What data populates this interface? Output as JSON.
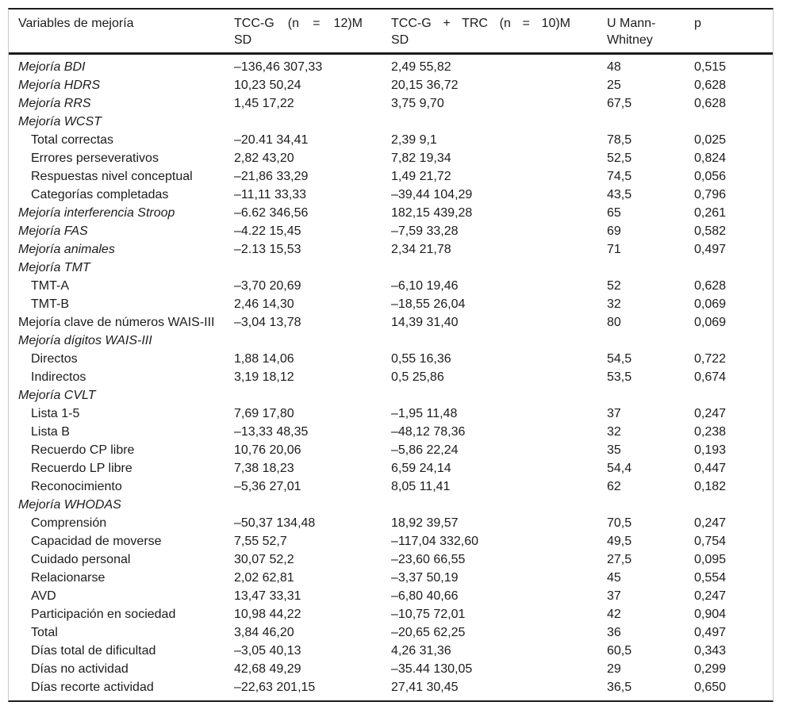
{
  "table": {
    "columns": [
      {
        "name": "variables",
        "line1": "Variables de mejoría",
        "line2": ""
      },
      {
        "name": "tccg",
        "line1": "TCC-G (n = 12)M",
        "line2": "SD"
      },
      {
        "name": "tccg_trc",
        "line1": "TCC-G + TRC (n = 10)M",
        "line2": "SD"
      },
      {
        "name": "u_mann_whitney",
        "line1": "U Mann-",
        "line2": "Whitney"
      },
      {
        "name": "p",
        "line1": "p",
        "line2": ""
      }
    ],
    "rows": [
      {
        "label": "Mejoría BDI",
        "italic": true,
        "indent": false,
        "values": [
          "–136,46 307,33",
          "2,49 55,82",
          "48",
          "0,515"
        ]
      },
      {
        "label": "Mejoría HDRS",
        "italic": true,
        "indent": false,
        "values": [
          "10,23 50,24",
          "20,15 36,72",
          "25",
          "0,628"
        ]
      },
      {
        "label": "Mejoría RRS",
        "italic": true,
        "indent": false,
        "values": [
          "1,45 17,22",
          "3,75 9,70",
          "67,5",
          "0,628"
        ]
      },
      {
        "label": "Mejoría WCST",
        "italic": true,
        "indent": false,
        "values": [
          "",
          "",
          "",
          ""
        ]
      },
      {
        "label": "Total correctas",
        "italic": false,
        "indent": true,
        "values": [
          "–20.41 34,41",
          "2,39 9,1",
          "78,5",
          "0,025"
        ]
      },
      {
        "label": "Errores perseverativos",
        "italic": false,
        "indent": true,
        "values": [
          "2,82 43,20",
          "7,82 19,34",
          "52,5",
          "0,824"
        ]
      },
      {
        "label": "Respuestas nivel conceptual",
        "italic": false,
        "indent": true,
        "values": [
          "–21,86 33,29",
          "1,49 21,72",
          "74,5",
          "0,056"
        ]
      },
      {
        "label": "Categorías completadas",
        "italic": false,
        "indent": true,
        "values": [
          "–11,11 33,33",
          "–39,44 104,29",
          "43,5",
          "0,796"
        ]
      },
      {
        "label": "Mejoría interferencia Stroop",
        "italic": true,
        "indent": false,
        "values": [
          "–6.62 346,56",
          "182,15 439,28",
          "65",
          "0,261"
        ]
      },
      {
        "label": "Mejoría FAS",
        "italic": true,
        "indent": false,
        "values": [
          "–4.22 15,45",
          "–7,59 33,28",
          "69",
          "0,582"
        ]
      },
      {
        "label": "Mejoría animales",
        "italic": true,
        "indent": false,
        "values": [
          "–2.13 15,53",
          "2,34 21,78",
          "71",
          "0,497"
        ]
      },
      {
        "label": "Mejoría TMT",
        "italic": true,
        "indent": false,
        "values": [
          "",
          "",
          "",
          ""
        ]
      },
      {
        "label": "TMT-A",
        "italic": false,
        "indent": true,
        "values": [
          "–3,70 20,69",
          "–6,10 19,46",
          "52",
          "0,628"
        ]
      },
      {
        "label": "TMT-B",
        "italic": false,
        "indent": true,
        "values": [
          "2,46 14,30",
          "–18,55 26,04",
          "32",
          "0,069"
        ]
      },
      {
        "label": "Mejoría clave de números WAIS-III",
        "italic": false,
        "indent": false,
        "values": [
          "–3,04 13,78",
          "14,39 31,40",
          "80",
          "0,069"
        ]
      },
      {
        "label": "Mejoría dígitos WAIS-III",
        "italic": true,
        "indent": false,
        "values": [
          "",
          "",
          "",
          ""
        ]
      },
      {
        "label": "Directos",
        "italic": false,
        "indent": true,
        "values": [
          "1,88 14,06",
          "0,55 16,36",
          "54,5",
          "0,722"
        ]
      },
      {
        "label": "Indirectos",
        "italic": false,
        "indent": true,
        "values": [
          "3,19 18,12",
          "0,5 25,86",
          "53,5",
          "0,674"
        ]
      },
      {
        "label": "Mejoría CVLT",
        "italic": true,
        "indent": false,
        "values": [
          "",
          "",
          "",
          ""
        ]
      },
      {
        "label": "Lista 1-5",
        "italic": false,
        "indent": true,
        "values": [
          "7,69 17,80",
          "–1,95 11,48",
          "37",
          "0,247"
        ]
      },
      {
        "label": "Lista B",
        "italic": false,
        "indent": true,
        "values": [
          "–13,33 48,35",
          "–48,12 78,36",
          "32",
          "0,238"
        ]
      },
      {
        "label": "Recuerdo CP libre",
        "italic": false,
        "indent": true,
        "values": [
          "10,76 20,06",
          "–5,86 22,24",
          "35",
          "0,193"
        ]
      },
      {
        "label": "Recuerdo LP libre",
        "italic": false,
        "indent": true,
        "values": [
          "7,38 18,23",
          "6,59 24,14",
          "54,4",
          "0,447"
        ]
      },
      {
        "label": "Reconocimiento",
        "italic": false,
        "indent": true,
        "values": [
          "–5,36 27,01",
          "8,05 11,41",
          "62",
          "0,182"
        ]
      },
      {
        "label": "Mejoría WHODAS",
        "italic": true,
        "indent": false,
        "values": [
          "",
          "",
          "",
          ""
        ]
      },
      {
        "label": "Comprensión",
        "italic": false,
        "indent": true,
        "values": [
          "–50,37 134,48",
          "18,92 39,57",
          "70,5",
          "0,247"
        ]
      },
      {
        "label": "Capacidad de moverse",
        "italic": false,
        "indent": true,
        "values": [
          "7,55 52,7",
          "–117,04 332,60",
          "49,5",
          "0,754"
        ]
      },
      {
        "label": "Cuidado personal",
        "italic": false,
        "indent": true,
        "values": [
          "30,07 52,2",
          "–23,60 66,55",
          "27,5",
          "0,095"
        ]
      },
      {
        "label": "Relacionarse",
        "italic": false,
        "indent": true,
        "values": [
          "2,02 62,81",
          "–3,37 50,19",
          "45",
          "0,554"
        ]
      },
      {
        "label": "AVD",
        "italic": false,
        "indent": true,
        "values": [
          "13,47 33,31",
          "–6,80 40,66",
          "37",
          "0,247"
        ]
      },
      {
        "label": "Participación en sociedad",
        "italic": false,
        "indent": true,
        "values": [
          "10,98 44,22",
          "–10,75 72,01",
          "42",
          "0,904"
        ]
      },
      {
        "label": "Total",
        "italic": false,
        "indent": true,
        "values": [
          "3,84 46,20",
          "–20,65 62,25",
          "36",
          "0,497"
        ]
      },
      {
        "label": "Días total de dificultad",
        "italic": false,
        "indent": true,
        "values": [
          "–3,05 40,13",
          "4,26 31,36",
          "60,5",
          "0,343"
        ]
      },
      {
        "label": "Días no actividad",
        "italic": false,
        "indent": true,
        "values": [
          "42,68 49,29",
          "–35.44 130,05",
          "29",
          "0,299"
        ]
      },
      {
        "label": "Días recorte actividad",
        "italic": false,
        "indent": true,
        "values": [
          "–22,63 201,15",
          "27,41 30,45",
          "36,5",
          "0,650"
        ]
      }
    ]
  }
}
